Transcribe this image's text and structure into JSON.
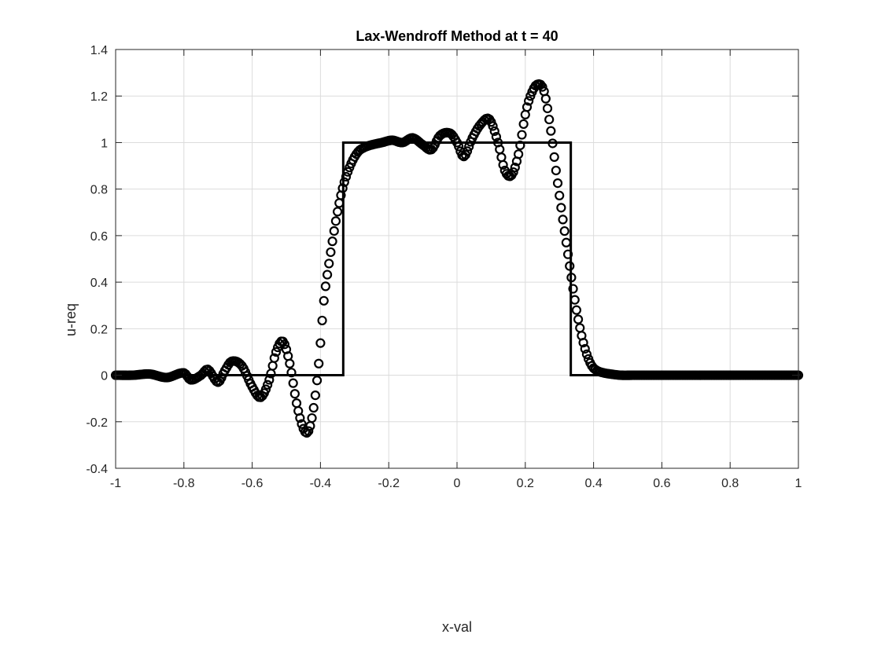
{
  "chart_data": {
    "type": "line",
    "title": "Lax-Wendroff Method at t = 40",
    "xlabel": "x-val",
    "ylabel": "u-req",
    "xlim": [
      -1,
      1
    ],
    "ylim": [
      -0.4,
      1.4
    ],
    "xticks": [
      "-1",
      "-0.8",
      "-0.6",
      "-0.4",
      "-0.2",
      "0",
      "0.2",
      "0.4",
      "0.6",
      "0.8",
      "1"
    ],
    "yticks": [
      "-0.4",
      "-0.2",
      "0",
      "0.2",
      "0.4",
      "0.6",
      "0.8",
      "1",
      "1.2",
      "1.4"
    ],
    "grid": true,
    "legend": "none",
    "series": [
      {
        "style": "line",
        "color": "#000000",
        "x": [
          -1,
          -0.3333,
          -0.3333,
          0.3333,
          0.3333,
          1
        ],
        "y": [
          0,
          0,
          1,
          1,
          0,
          0
        ]
      },
      {
        "style": "circle-markers",
        "color": "#000000",
        "x": [
          -1.0,
          -0.95,
          -0.9,
          -0.85,
          -0.8,
          -0.78,
          -0.75,
          -0.73,
          -0.7,
          -0.68,
          -0.66,
          -0.63,
          -0.6,
          -0.575,
          -0.55,
          -0.53,
          -0.51,
          -0.49,
          -0.47,
          -0.45,
          -0.435,
          -0.42,
          -0.405,
          -0.39,
          -0.375,
          -0.36,
          -0.345,
          -0.33,
          -0.31,
          -0.29,
          -0.27,
          -0.25,
          -0.22,
          -0.19,
          -0.16,
          -0.13,
          -0.1,
          -0.075,
          -0.05,
          -0.02,
          0.0,
          0.02,
          0.045,
          0.07,
          0.095,
          0.12,
          0.14,
          0.16,
          0.18,
          0.2,
          0.215,
          0.235,
          0.255,
          0.275,
          0.29,
          0.305,
          0.32,
          0.335,
          0.35,
          0.365,
          0.38,
          0.395,
          0.41,
          0.43,
          0.45,
          0.48,
          0.52,
          0.6,
          0.7,
          0.8,
          0.9,
          1.0
        ],
        "y": [
          0.0,
          0.0,
          0.005,
          -0.01,
          0.01,
          -0.02,
          0.0,
          0.025,
          -0.03,
          0.02,
          0.06,
          0.04,
          -0.05,
          -0.095,
          -0.02,
          0.1,
          0.145,
          0.05,
          -0.12,
          -0.23,
          -0.24,
          -0.14,
          0.05,
          0.32,
          0.48,
          0.62,
          0.74,
          0.83,
          0.91,
          0.96,
          0.98,
          0.99,
          1.0,
          1.01,
          1.0,
          1.02,
          0.99,
          0.97,
          1.03,
          1.04,
          1.0,
          0.94,
          1.02,
          1.08,
          1.1,
          1.0,
          0.88,
          0.86,
          0.95,
          1.12,
          1.2,
          1.25,
          1.22,
          1.05,
          0.88,
          0.72,
          0.57,
          0.42,
          0.28,
          0.17,
          0.09,
          0.04,
          0.02,
          0.01,
          0.005,
          0.0,
          0.0,
          0.0,
          0.0,
          0.0,
          0.0,
          0.0
        ]
      }
    ]
  }
}
